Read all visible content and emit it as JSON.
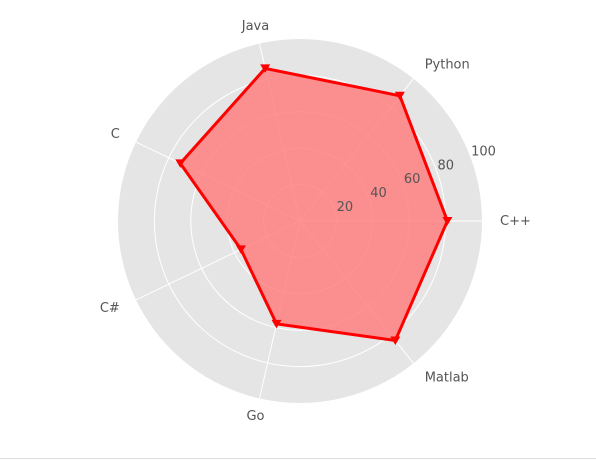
{
  "chart_data": {
    "type": "radar",
    "categories": [
      "C++",
      "Python",
      "Java",
      "C",
      "C#",
      "Go",
      "Matlab"
    ],
    "values": [
      81,
      88,
      86,
      73,
      36,
      58,
      84
    ],
    "r_ticks": [
      20,
      40,
      60,
      80,
      100
    ],
    "r_max": 100,
    "grid": true,
    "colors": {
      "fill": "#ff7f7f",
      "line": "#ff0000",
      "background": "#e5e5e5",
      "grid": "#ffffff",
      "label": "#555555"
    }
  }
}
